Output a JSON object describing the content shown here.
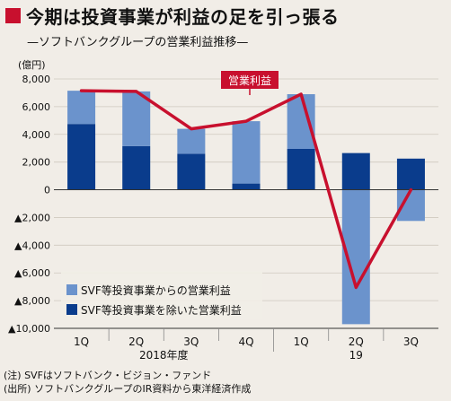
{
  "header": {
    "title": "今期は投資事業が利益の足を引っ張る",
    "subtitle": "—ソフトバンクグループの営業利益推移—",
    "unit": "(億円)"
  },
  "colors": {
    "title_mark": "#c8102e",
    "svf": "#6b93cc",
    "excl": "#0a3c8c",
    "line": "#c8102e",
    "callout_bg": "#c8102e",
    "callout_text": "#ffffff"
  },
  "chart_data": {
    "type": "bar",
    "categories": [
      "1Q",
      "2Q",
      "3Q",
      "4Q",
      "1Q",
      "2Q",
      "3Q"
    ],
    "period_labels": [
      {
        "label": "2018年度",
        "from": 0,
        "to": 3
      },
      {
        "label": "19",
        "from": 4,
        "to": 6
      }
    ],
    "ylim": [
      -10000,
      8000
    ],
    "yticks": [
      {
        "value": 8000,
        "label": "8,000"
      },
      {
        "value": 6000,
        "label": "6,000"
      },
      {
        "value": 4000,
        "label": "4,000"
      },
      {
        "value": 2000,
        "label": "2,000"
      },
      {
        "value": 0,
        "label": "0"
      },
      {
        "value": -2000,
        "label": "▲2,000"
      },
      {
        "value": -4000,
        "label": "▲4,000"
      },
      {
        "value": -6000,
        "label": "▲6,000"
      },
      {
        "value": -8000,
        "label": "▲8,000"
      },
      {
        "value": -10000,
        "label": "▲10,000"
      }
    ],
    "grid": true,
    "legend_position": "lower-left",
    "series": [
      {
        "name": "SVF等投資事業を除いた営業利益",
        "type": "stacked-bar",
        "values": [
          4750,
          3150,
          2600,
          450,
          2950,
          2650,
          2250
        ]
      },
      {
        "name": "SVF等投資事業からの営業利益",
        "type": "stacked-bar",
        "values": [
          2400,
          3950,
          1800,
          4500,
          3950,
          -9700,
          -2250
        ]
      },
      {
        "name": "営業利益",
        "type": "line",
        "values": [
          7150,
          7100,
          4400,
          4950,
          6900,
          -7050,
          0
        ]
      }
    ],
    "annotation": "営業利益"
  },
  "notes": [
    "(注) SVFはソフトバンク・ビジョン・ファンド",
    "(出所) ソフトバンクグループのIR資料から東洋経済作成"
  ]
}
